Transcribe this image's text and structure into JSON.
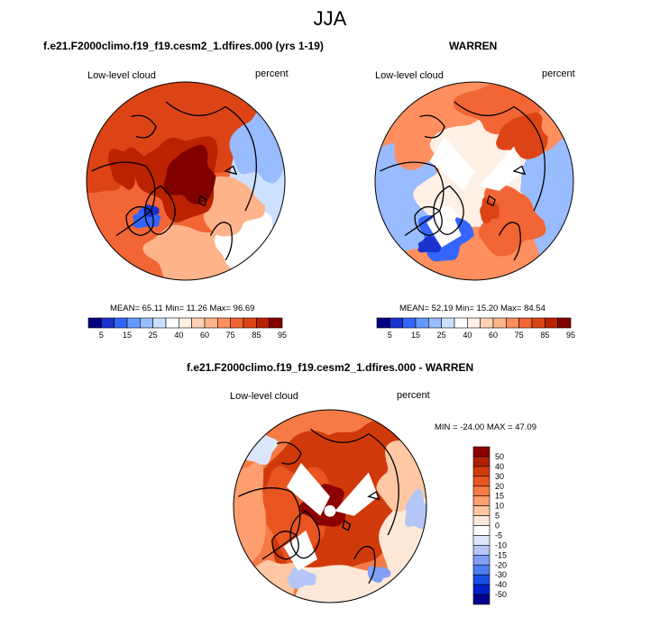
{
  "page": {
    "title": "JJA"
  },
  "palette": {
    "seq": [
      "#000080",
      "#1a33cc",
      "#3366ff",
      "#6699ff",
      "#99bbff",
      "#cce0ff",
      "#ffffff",
      "#fff0e6",
      "#ffd1b3",
      "#ffb38a",
      "#ff8f5e",
      "#f26535",
      "#dd4415",
      "#bb2200",
      "#800000"
    ],
    "diff": [
      "#00008b",
      "#0022cc",
      "#1a4ce6",
      "#4d7ff2",
      "#809ff5",
      "#b3c6f7",
      "#dbe6fb",
      "#ffffff",
      "#fde8d8",
      "#ffc7a3",
      "#ff9e6e",
      "#f57a45",
      "#e85520",
      "#d03a0a",
      "#b02000",
      "#8b0000"
    ],
    "coast": "#000000"
  },
  "panels": [
    {
      "title": "f.e21.F2000climo.f19_f19.cesm2_1.dfires.000 (yrs 1-19)",
      "left_label": "Low-level cloud",
      "right_label": "percent",
      "stats": {
        "mean": "65.11",
        "min": "11.26",
        "max": "96.69",
        "text": "MEAN=  65.11   Min=  11.26   Max=  96.69"
      },
      "mean": 65.11,
      "min": 11.26,
      "max": 96.69
    },
    {
      "title": "WARREN",
      "left_label": "Low-level cloud",
      "right_label": "percent",
      "stats": {
        "mean": "52.19",
        "min": "15.20",
        "max": "84.54",
        "text": "MEAN=  52.19   Min=  15.20   Max=  84.54"
      },
      "mean": 52.19,
      "min": 15.2,
      "max": 84.54
    },
    {
      "title": "f.e21.F2000climo.f19_f19.cesm2_1.dfires.000 - WARREN",
      "left_label": "Low-level cloud",
      "right_label": "percent",
      "stats": {
        "min": "-24.00",
        "max": "47.09",
        "text": "MIN = -24.00 MAX =  47.09"
      },
      "min": -24.0,
      "max": 47.09
    }
  ],
  "chart_data": [
    {
      "type": "heatmap",
      "projection": "north polar stereographic",
      "title": "f.e21.F2000climo.f19_f19.cesm2_1.dfires.000 (yrs 1-19)",
      "variable": "Low-level cloud",
      "units": "percent",
      "mean": 65.11,
      "min": 11.26,
      "max": 96.69,
      "colorbar_levels": [
        5,
        10,
        15,
        20,
        25,
        30,
        40,
        50,
        60,
        70,
        75,
        80,
        85,
        90,
        95
      ],
      "colorbar_tick_labels": [
        "5",
        "15",
        "25",
        "40",
        "60",
        "75",
        "85",
        "95"
      ]
    },
    {
      "type": "heatmap",
      "projection": "north polar stereographic",
      "title": "WARREN",
      "variable": "Low-level cloud",
      "units": "percent",
      "mean": 52.19,
      "min": 15.2,
      "max": 84.54,
      "colorbar_levels": [
        5,
        10,
        15,
        20,
        25,
        30,
        40,
        50,
        60,
        70,
        75,
        80,
        85,
        90,
        95
      ],
      "colorbar_tick_labels": [
        "5",
        "15",
        "25",
        "40",
        "60",
        "75",
        "85",
        "95"
      ]
    },
    {
      "type": "heatmap",
      "projection": "north polar stereographic",
      "title": "f.e21.F2000climo.f19_f19.cesm2_1.dfires.000 - WARREN",
      "variable": "Low-level cloud",
      "units": "percent",
      "min": -24.0,
      "max": 47.09,
      "colorbar_levels": [
        -50,
        -40,
        -30,
        -20,
        -15,
        -10,
        -5,
        0,
        5,
        10,
        15,
        20,
        30,
        40,
        50
      ],
      "colorbar_tick_labels": [
        "-50",
        "-40",
        "-30",
        "-20",
        "-15",
        "-10",
        "-5",
        "0",
        "5",
        "10",
        "15",
        "20",
        "30",
        "40",
        "50"
      ]
    }
  ]
}
